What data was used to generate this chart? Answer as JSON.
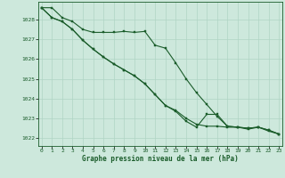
{
  "title": "Graphe pression niveau de la mer (hPa)",
  "background_color": "#cde8dc",
  "grid_color": "#b0d4c4",
  "line_color": "#1a5c2a",
  "marker_color": "#1a5c2a",
  "x_ticks": [
    0,
    1,
    2,
    3,
    4,
    5,
    6,
    7,
    8,
    9,
    10,
    11,
    12,
    13,
    14,
    15,
    16,
    17,
    18,
    19,
    20,
    21,
    22,
    23
  ],
  "y_ticks": [
    1022,
    1023,
    1024,
    1025,
    1026,
    1027,
    1028
  ],
  "ylim": [
    1021.6,
    1028.9
  ],
  "xlim": [
    -0.3,
    23.3
  ],
  "series": [
    [
      1028.6,
      1028.6,
      1028.1,
      1027.9,
      1027.5,
      1027.35,
      1027.35,
      1027.35,
      1027.4,
      1027.35,
      1027.4,
      1026.7,
      1026.55,
      1025.8,
      1025.0,
      1024.3,
      1023.7,
      1023.1,
      1022.6,
      1022.55,
      1022.5,
      1022.55,
      1022.35,
      1022.2
    ],
    [
      1028.6,
      1028.1,
      1027.9,
      1027.5,
      1026.95,
      1026.5,
      1026.1,
      1025.75,
      1025.45,
      1025.15,
      1024.75,
      1024.2,
      1023.65,
      1023.4,
      1023.0,
      1022.7,
      1022.6,
      1022.6,
      1022.55,
      1022.55,
      1022.5,
      1022.55,
      1022.4,
      1022.2
    ],
    [
      1028.6,
      1028.1,
      1027.9,
      1027.5,
      1026.95,
      1026.5,
      1026.1,
      1025.75,
      1025.45,
      1025.15,
      1024.75,
      1024.2,
      1023.65,
      1023.35,
      1022.85,
      1022.55,
      1023.2,
      1023.2,
      1022.6,
      1022.55,
      1022.45,
      1022.55,
      1022.4,
      1022.2
    ]
  ]
}
